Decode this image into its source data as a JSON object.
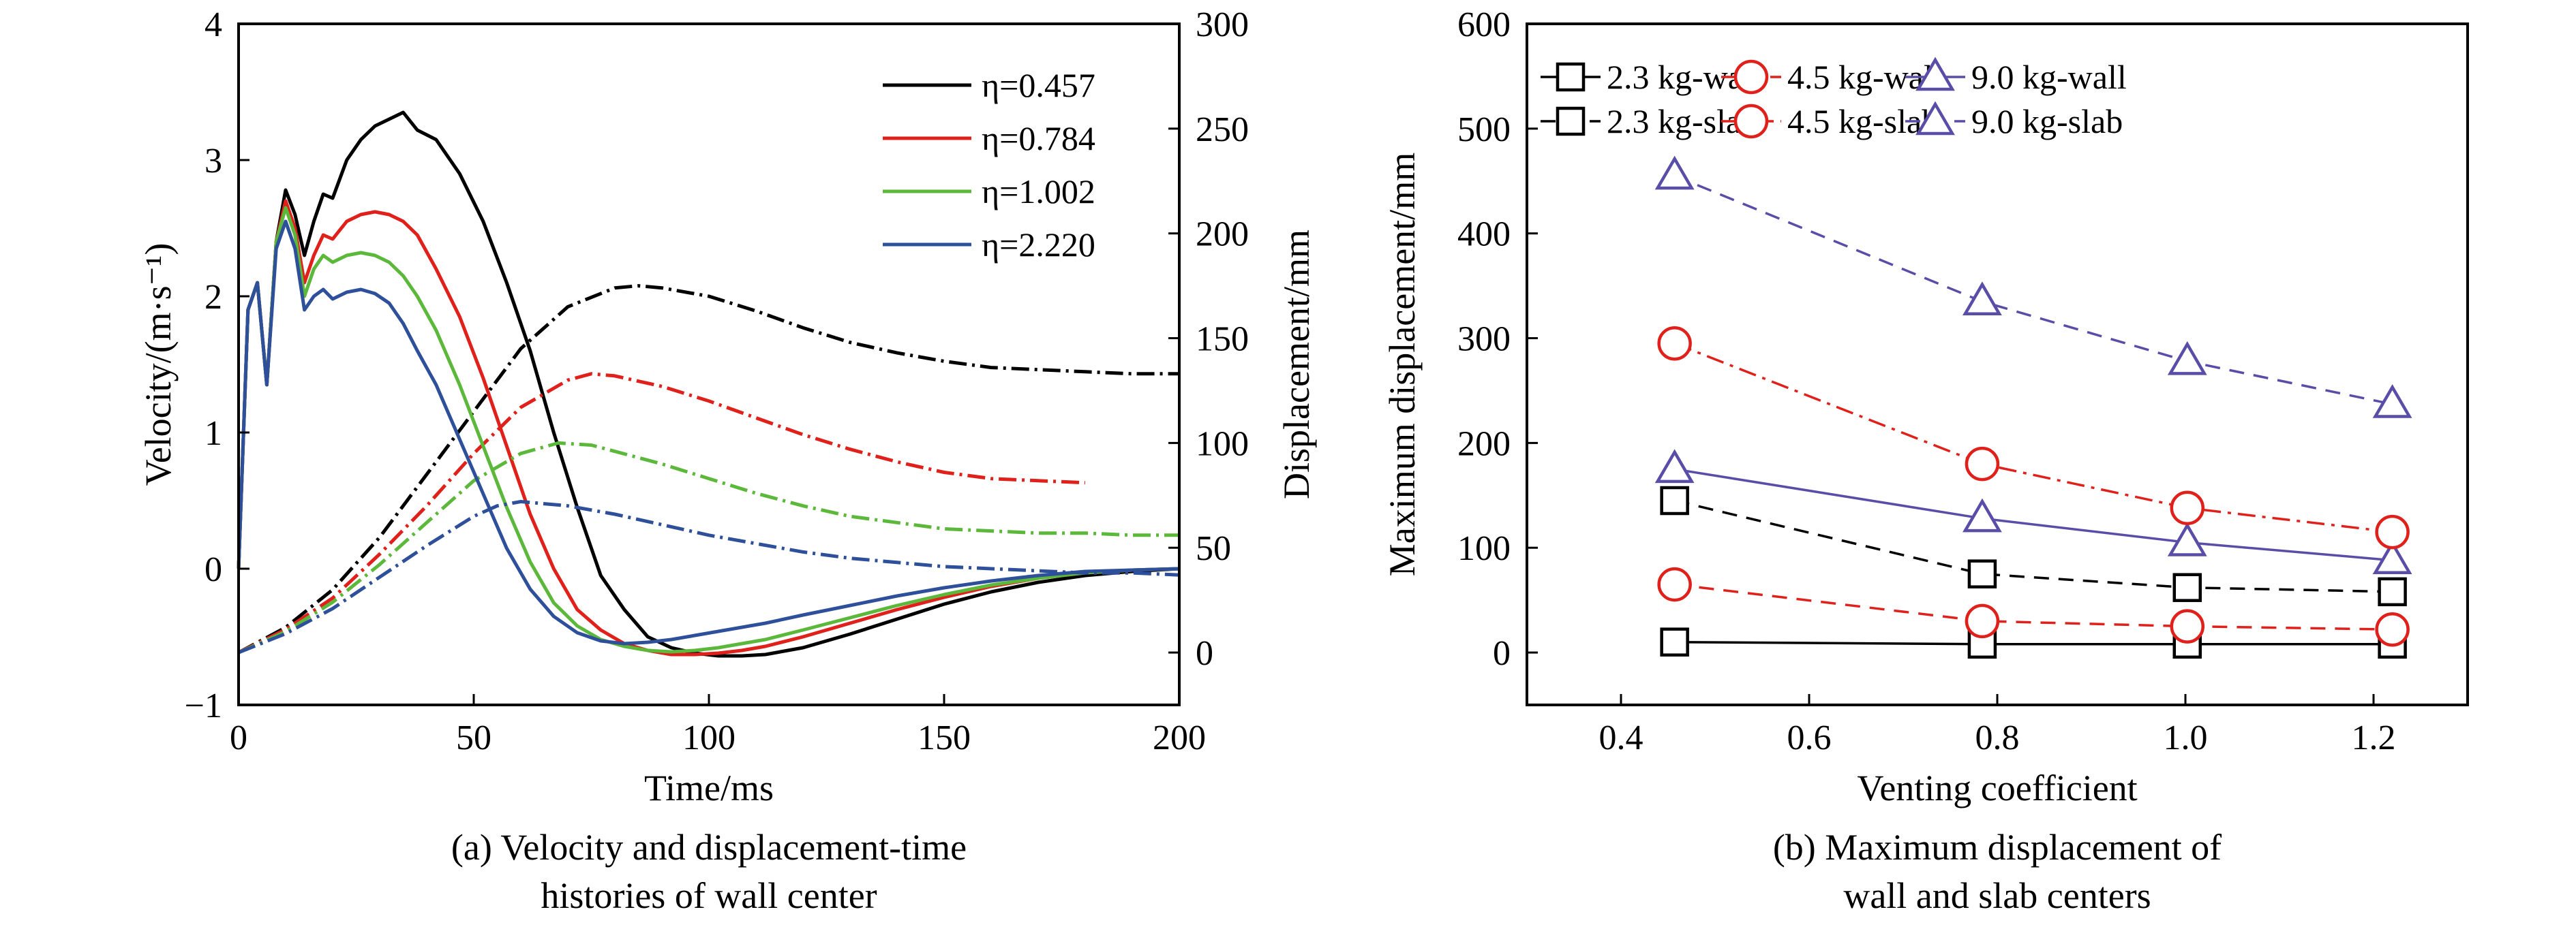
{
  "chart_data": [
    {
      "id": "a",
      "type": "line",
      "caption_lines": [
        "(a) Velocity and displacement-time",
        "histories of wall center"
      ],
      "xlabel": "Time/ms",
      "ylabel_left": "Velocity/(m·s⁻¹)",
      "ylabel_right": "Displacement/mm",
      "xlim": [
        0,
        200
      ],
      "ylim_left": [
        -1,
        4
      ],
      "ylim_right": [
        -25,
        300
      ],
      "xticks": [
        0,
        50,
        100,
        150,
        200
      ],
      "yticks_left": [
        -1,
        0,
        1,
        2,
        3,
        4
      ],
      "yticks_right": [
        0,
        50,
        100,
        150,
        200,
        250,
        300
      ],
      "grid": false,
      "legend_position": "top-right",
      "series": [
        {
          "name": "η=0.457",
          "color": "#000000",
          "velocity": {
            "x": [
              0,
              2,
              4,
              6,
              8,
              10,
              12,
              14,
              16,
              18,
              20,
              23,
              26,
              29,
              32,
              35,
              38,
              42,
              47,
              52,
              57,
              62,
              67,
              72,
              77,
              82,
              87,
              92,
              97,
              102,
              107,
              112,
              120,
              130,
              140,
              150,
              160,
              170,
              180,
              190,
              200
            ],
            "y": [
              0,
              1.9,
              2.1,
              1.35,
              2.4,
              2.78,
              2.6,
              2.3,
              2.55,
              2.75,
              2.72,
              3.0,
              3.15,
              3.25,
              3.3,
              3.35,
              3.22,
              3.15,
              2.9,
              2.55,
              2.1,
              1.6,
              1.0,
              0.45,
              -0.05,
              -0.3,
              -0.5,
              -0.58,
              -0.62,
              -0.64,
              -0.64,
              -0.63,
              -0.58,
              -0.48,
              -0.37,
              -0.26,
              -0.17,
              -0.1,
              -0.05,
              -0.02,
              0
            ]
          },
          "displacement": {
            "x": [
              0,
              10,
              20,
              30,
              40,
              50,
              60,
              70,
              80,
              85,
              90,
              100,
              110,
              120,
              130,
              140,
              150,
              160,
              170,
              180,
              190,
              200
            ],
            "y": [
              0,
              12,
              30,
              55,
              85,
              115,
              145,
              165,
              174,
              175,
              174,
              170,
              163,
              155,
              148,
              143,
              139,
              136,
              135,
              134,
              133,
              133
            ]
          }
        },
        {
          "name": "η=0.784",
          "color": "#e0201a",
          "velocity": {
            "x": [
              0,
              2,
              4,
              6,
              8,
              10,
              12,
              14,
              16,
              18,
              20,
              23,
              26,
              29,
              32,
              35,
              38,
              42,
              47,
              52,
              57,
              62,
              67,
              72,
              77,
              82,
              87,
              92,
              97,
              102,
              107,
              112,
              120,
              130,
              140,
              150,
              160,
              170,
              180,
              190,
              200
            ],
            "y": [
              0,
              1.9,
              2.1,
              1.35,
              2.4,
              2.7,
              2.5,
              2.1,
              2.3,
              2.45,
              2.42,
              2.55,
              2.6,
              2.62,
              2.6,
              2.55,
              2.45,
              2.2,
              1.85,
              1.4,
              0.9,
              0.4,
              0.0,
              -0.3,
              -0.45,
              -0.55,
              -0.6,
              -0.63,
              -0.63,
              -0.62,
              -0.6,
              -0.57,
              -0.5,
              -0.4,
              -0.3,
              -0.21,
              -0.13,
              -0.07,
              -0.03,
              -0.01,
              0
            ]
          },
          "displacement": {
            "x": [
              0,
              10,
              20,
              30,
              40,
              50,
              60,
              70,
              75,
              80,
              90,
              100,
              110,
              120,
              130,
              140,
              150,
              160,
              170,
              180
            ],
            "y": [
              0,
              11,
              26,
              47,
              70,
              95,
              117,
              130,
              133,
              132,
              127,
              120,
              112,
              104,
              97,
              91,
              86,
              83,
              82,
              81
            ]
          }
        },
        {
          "name": "η=1.002",
          "color": "#5cb83a",
          "velocity": {
            "x": [
              0,
              2,
              4,
              6,
              8,
              10,
              12,
              14,
              16,
              18,
              20,
              23,
              26,
              29,
              32,
              35,
              38,
              42,
              47,
              52,
              57,
              62,
              67,
              72,
              77,
              82,
              87,
              92,
              97,
              102,
              107,
              112,
              120,
              130,
              140,
              150,
              160,
              170,
              180,
              190,
              200
            ],
            "y": [
              0,
              1.9,
              2.1,
              1.35,
              2.4,
              2.65,
              2.45,
              2.0,
              2.2,
              2.3,
              2.25,
              2.3,
              2.32,
              2.3,
              2.25,
              2.15,
              2.0,
              1.75,
              1.35,
              0.9,
              0.45,
              0.05,
              -0.25,
              -0.42,
              -0.52,
              -0.57,
              -0.6,
              -0.61,
              -0.6,
              -0.58,
              -0.55,
              -0.52,
              -0.45,
              -0.36,
              -0.27,
              -0.19,
              -0.12,
              -0.07,
              -0.03,
              -0.01,
              0
            ]
          },
          "displacement": {
            "x": [
              0,
              10,
              20,
              30,
              40,
              50,
              60,
              68,
              75,
              80,
              90,
              100,
              110,
              120,
              130,
              140,
              150,
              160,
              170,
              180,
              190,
              200
            ],
            "y": [
              0,
              10,
              24,
              42,
              62,
              82,
              95,
              100,
              99,
              96,
              90,
              83,
              76,
              70,
              65,
              62,
              59,
              58,
              57,
              57,
              56,
              56
            ]
          }
        },
        {
          "name": "η=2.220",
          "color": "#2e4f9a",
          "velocity": {
            "x": [
              0,
              2,
              4,
              6,
              8,
              10,
              12,
              14,
              16,
              18,
              20,
              23,
              26,
              29,
              32,
              35,
              38,
              42,
              47,
              52,
              57,
              62,
              67,
              72,
              77,
              82,
              87,
              92,
              97,
              102,
              107,
              112,
              120,
              130,
              140,
              150,
              160,
              170,
              180,
              190,
              200
            ],
            "y": [
              0,
              1.9,
              2.1,
              1.35,
              2.35,
              2.55,
              2.35,
              1.9,
              2.0,
              2.05,
              1.98,
              2.03,
              2.05,
              2.02,
              1.95,
              1.8,
              1.6,
              1.35,
              0.95,
              0.55,
              0.15,
              -0.15,
              -0.35,
              -0.47,
              -0.53,
              -0.55,
              -0.54,
              -0.52,
              -0.49,
              -0.46,
              -0.43,
              -0.4,
              -0.34,
              -0.27,
              -0.2,
              -0.14,
              -0.09,
              -0.05,
              -0.02,
              -0.01,
              0
            ]
          },
          "displacement": {
            "x": [
              0,
              10,
              20,
              30,
              40,
              50,
              55,
              60,
              70,
              80,
              90,
              100,
              110,
              120,
              130,
              140,
              150,
              160,
              170,
              180,
              190,
              200
            ],
            "y": [
              0,
              9,
              21,
              36,
              51,
              65,
              70,
              72,
              70,
              66,
              61,
              56,
              52,
              48,
              45,
              43,
              41,
              40,
              39,
              38,
              38,
              37
            ]
          }
        }
      ]
    },
    {
      "id": "b",
      "type": "line",
      "caption_lines": [
        "(b) Maximum displacement of",
        "wall and slab centers"
      ],
      "xlabel": "Venting coefficient",
      "ylabel": "Maximum displacement/mm",
      "xlim": [
        0.3,
        1.3
      ],
      "ylim": [
        -50,
        600
      ],
      "xticks": [
        0.4,
        0.6,
        0.8,
        1.0,
        1.2
      ],
      "yticks": [
        0,
        100,
        200,
        300,
        400,
        500,
        600
      ],
      "grid": false,
      "legend_position": "top",
      "x": [
        0.457,
        0.784,
        1.002,
        1.22
      ],
      "series": [
        {
          "name": "2.3 kg-wall",
          "color": "#000000",
          "marker": "square",
          "line": "solid",
          "values": [
            10,
            8,
            8,
            8
          ]
        },
        {
          "name": "4.5 kg-wall",
          "color": "#e0201a",
          "marker": "circle",
          "line": "dashed",
          "values": [
            65,
            30,
            25,
            22
          ]
        },
        {
          "name": "9.0 kg-wall",
          "color": "#5a4da8",
          "marker": "triangle",
          "line": "solid",
          "values": [
            175,
            128,
            105,
            88
          ]
        },
        {
          "name": "2.3 kg-slab",
          "color": "#000000",
          "marker": "square",
          "line": "dashed",
          "values": [
            145,
            75,
            62,
            58
          ]
        },
        {
          "name": "4.5 kg-slab",
          "color": "#e0201a",
          "marker": "circle",
          "line": "dashdot",
          "values": [
            295,
            180,
            138,
            115
          ]
        },
        {
          "name": "9.0 kg-slab",
          "color": "#5a4da8",
          "marker": "triangle",
          "line": "dashed",
          "values": [
            455,
            335,
            278,
            237
          ]
        }
      ]
    }
  ]
}
